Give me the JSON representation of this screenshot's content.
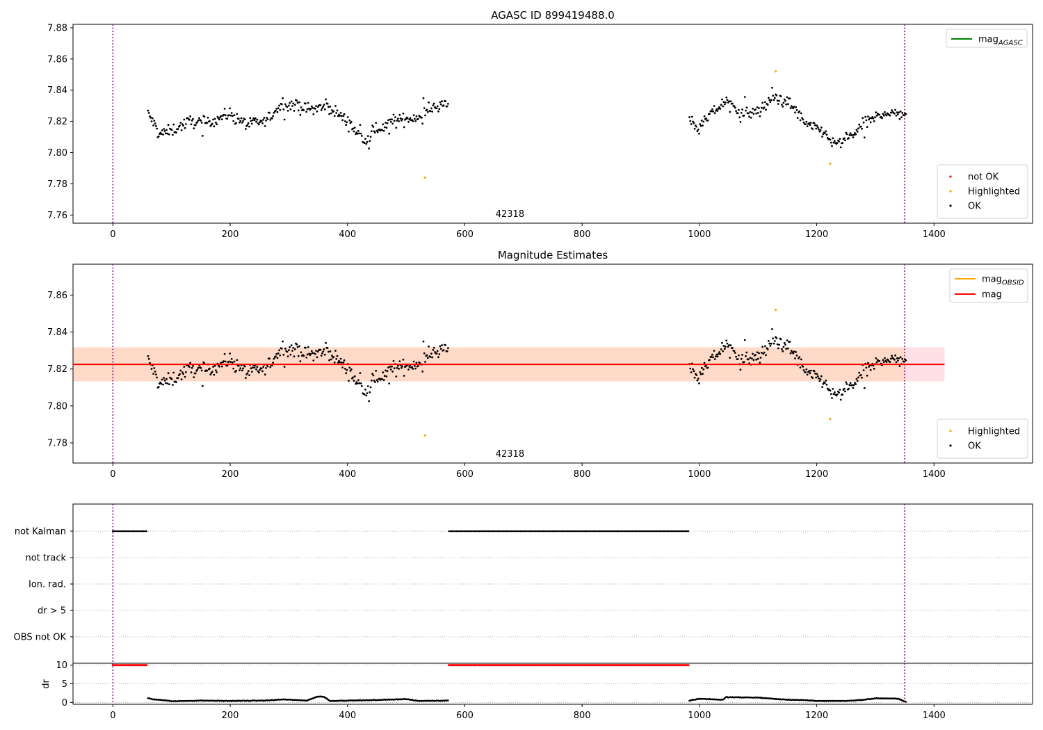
{
  "colors": {
    "ok": "#000000",
    "highlighted": "#ffa500",
    "not_ok": "#ff0000",
    "mag_agasc": "#008000",
    "mag_obsid": "#ffa500",
    "mag": "#ff0000",
    "obsid_band": "#ffdac8",
    "mag_band": "#ffe0e6",
    "vline": "#800080",
    "grid": "#b0b0b0"
  },
  "chart_data": [
    {
      "type": "scatter",
      "title": "AGASC ID 899419488.0",
      "xlim": [
        -68,
        1568
      ],
      "ylim": [
        7.7548,
        7.8822
      ],
      "xticks": [
        "0",
        "200",
        "400",
        "600",
        "800",
        "1000",
        "1200",
        "1400"
      ],
      "yticks": [
        "7.76",
        "7.78",
        "7.80",
        "7.82",
        "7.84",
        "7.86",
        "7.88"
      ],
      "obsid_label": "42318",
      "obsid_label_x": 677,
      "vlines": [
        0,
        1350
      ],
      "legend_lines": [
        {
          "label_main": "mag",
          "label_sub": "AGASC",
          "color": "#008000"
        }
      ],
      "legend_points": [
        {
          "label": "not OK",
          "color": "#ff0000"
        },
        {
          "label": "Highlighted",
          "color": "#ffa500"
        },
        {
          "label": "OK",
          "color": "#000000"
        }
      ],
      "segments": [
        {
          "x_start": 60,
          "x_end": 572,
          "step": 1.5,
          "profile": [
            [
              60,
              7.825
            ],
            [
              80,
              7.812
            ],
            [
              100,
              7.814
            ],
            [
              130,
              7.82
            ],
            [
              160,
              7.819
            ],
            [
              200,
              7.825
            ],
            [
              230,
              7.818
            ],
            [
              260,
              7.82
            ],
            [
              290,
              7.832
            ],
            [
              330,
              7.828
            ],
            [
              370,
              7.829
            ],
            [
              400,
              7.82
            ],
            [
              430,
              7.807
            ],
            [
              450,
              7.815
            ],
            [
              480,
              7.82
            ],
            [
              520,
              7.823
            ],
            [
              550,
              7.83
            ],
            [
              572,
              7.831
            ]
          ]
        },
        {
          "x_start": 983,
          "x_end": 1352,
          "step": 1.5,
          "profile": [
            [
              983,
              7.822
            ],
            [
              1000,
              7.815
            ],
            [
              1020,
              7.825
            ],
            [
              1045,
              7.833
            ],
            [
              1075,
              7.825
            ],
            [
              1100,
              7.826
            ],
            [
              1130,
              7.836
            ],
            [
              1160,
              7.83
            ],
            [
              1180,
              7.818
            ],
            [
              1210,
              7.814
            ],
            [
              1230,
              7.805
            ],
            [
              1250,
              7.808
            ],
            [
              1280,
              7.818
            ],
            [
              1310,
              7.825
            ],
            [
              1352,
              7.825
            ]
          ]
        }
      ],
      "highlighted_points": [
        {
          "x": 532,
          "y": 7.784
        },
        {
          "x": 1130,
          "y": 7.852
        },
        {
          "x": 1223,
          "y": 7.793
        }
      ]
    },
    {
      "type": "scatter",
      "title": "Magnitude Estimates",
      "xlim": [
        -68,
        1568
      ],
      "ylim": [
        7.7691,
        7.8767
      ],
      "xticks": [
        "0",
        "200",
        "400",
        "600",
        "800",
        "1000",
        "1200",
        "1400"
      ],
      "yticks": [
        "7.78",
        "7.80",
        "7.82",
        "7.84",
        "7.86"
      ],
      "obsid_label": "42318",
      "obsid_label_x": 677,
      "vlines": [
        0,
        1350
      ],
      "mag_band": {
        "x": [
          -68,
          1418
        ],
        "y": [
          7.8133,
          7.8317
        ]
      },
      "obsid_band": {
        "x": [
          -68,
          1350
        ],
        "y": [
          7.8133,
          7.8317
        ]
      },
      "mag_line": {
        "y": 7.8225,
        "x": [
          -68,
          1418
        ]
      },
      "mag_obsid_line": {
        "y": 7.8225,
        "x": [
          -68,
          1350
        ]
      },
      "legend_lines": [
        {
          "label_main": "mag",
          "label_sub": "OBSID",
          "color": "#ffa500"
        },
        {
          "label_main": "mag",
          "label_sub": "",
          "color": "#ff0000"
        }
      ],
      "legend_points": [
        {
          "label": "Highlighted",
          "color": "#ffa500"
        },
        {
          "label": "OK",
          "color": "#000000"
        }
      ],
      "highlighted_points": [
        {
          "x": 532,
          "y": 7.784
        },
        {
          "x": 1130,
          "y": 7.852
        },
        {
          "x": 1223,
          "y": 7.793
        }
      ]
    },
    {
      "type": "scatter",
      "xlim": [
        -68,
        1568
      ],
      "yticks": [
        "not Kalman",
        "not track",
        "Ion. rad.",
        "dr > 5",
        "OBS not OK"
      ],
      "vlines": [
        0,
        1350
      ],
      "flag_segments": [
        {
          "row": "not Kalman",
          "x": [
            [
              0,
              58
            ],
            [
              573,
              982
            ]
          ]
        }
      ]
    },
    {
      "type": "scatter",
      "xlim": [
        -68,
        1568
      ],
      "ylim": [
        -0.5,
        10.5
      ],
      "ylabel": "dr",
      "xticks": [
        "0",
        "200",
        "400",
        "600",
        "800",
        "1000",
        "1200",
        "1400"
      ],
      "yticks": [
        "0",
        "5",
        "10"
      ],
      "vlines": [
        0,
        1350
      ],
      "capped_value": 10,
      "capped_ranges": [
        [
          0,
          58
        ],
        [
          573,
          982
        ]
      ],
      "dr_profile": [
        [
          60,
          1.1
        ],
        [
          70,
          0.8
        ],
        [
          95,
          0.5
        ],
        [
          100,
          0.3
        ],
        [
          150,
          0.5
        ],
        [
          200,
          0.4
        ],
        [
          260,
          0.5
        ],
        [
          290,
          0.8
        ],
        [
          330,
          0.5
        ],
        [
          350,
          1.6
        ],
        [
          360,
          1.5
        ],
        [
          370,
          0.4
        ],
        [
          400,
          0.5
        ],
        [
          440,
          0.6
        ],
        [
          500,
          0.9
        ],
        [
          520,
          0.4
        ],
        [
          572,
          0.5
        ],
        [
          983,
          0.5
        ],
        [
          1000,
          1.0
        ],
        [
          1040,
          0.7
        ],
        [
          1045,
          1.4
        ],
        [
          1100,
          1.3
        ],
        [
          1140,
          0.8
        ],
        [
          1180,
          0.6
        ],
        [
          1200,
          0.4
        ],
        [
          1250,
          0.4
        ],
        [
          1280,
          0.7
        ],
        [
          1300,
          1.1
        ],
        [
          1340,
          1.0
        ],
        [
          1350,
          0.2
        ]
      ]
    }
  ]
}
